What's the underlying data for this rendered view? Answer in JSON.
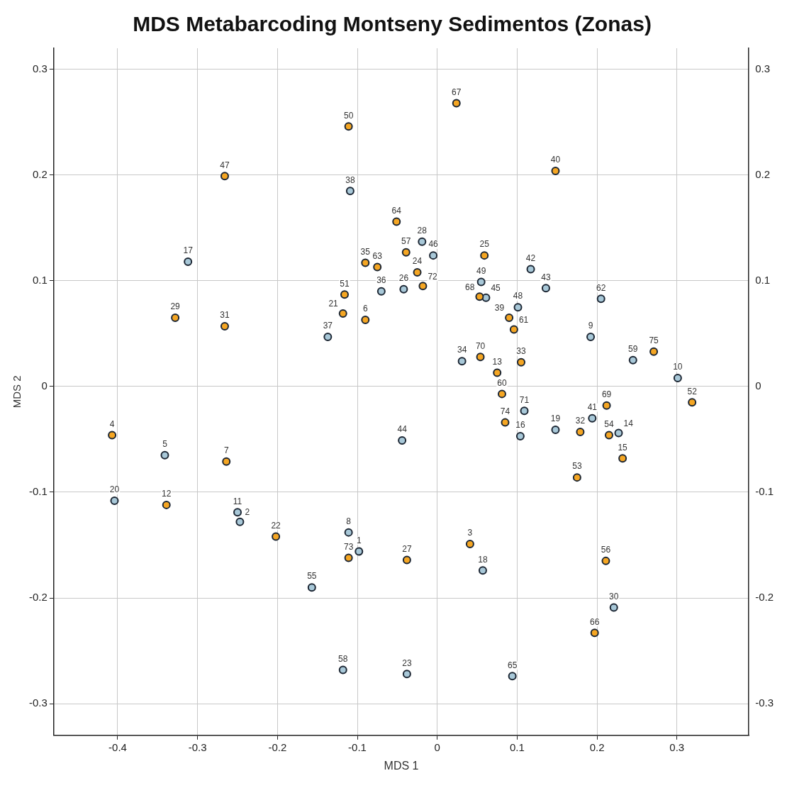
{
  "chart_data": {
    "type": "scatter",
    "title": "MDS Metabarcoding Montseny Sedimentos (Zonas)",
    "xlabel": "MDS 1",
    "ylabel": "MDS 2",
    "xlim": [
      -0.48,
      0.39
    ],
    "xticks": [
      -0.4,
      -0.3,
      -0.2,
      -0.1,
      0,
      0.1,
      0.2,
      0.3
    ],
    "ylim": [
      -0.33,
      0.32
    ],
    "yticks": [
      -0.3,
      -0.2,
      -0.1,
      0,
      0.1,
      0.2,
      0.3
    ],
    "y2lim": [
      -0.33,
      0.32
    ],
    "y2ticks": [
      -0.3,
      -0.2,
      -0.1,
      0,
      0.1,
      0.2,
      0.3
    ],
    "grid": true,
    "legend": false,
    "marker": "circle",
    "series": [
      {
        "color": "#f5a623",
        "x": [
          -0.407,
          -0.339,
          -0.264,
          -0.328,
          -0.266,
          -0.266,
          -0.202,
          -0.111,
          -0.116,
          -0.118,
          -0.09,
          -0.09,
          -0.075,
          -0.051,
          -0.039,
          -0.025,
          -0.018,
          0.024,
          0.148,
          0.059,
          0.053,
          0.09,
          0.096,
          0.054,
          0.075,
          0.105,
          0.081,
          0.085,
          0.271,
          0.319,
          0.212,
          0.179,
          0.215,
          0.232,
          0.175,
          0.211,
          0.197,
          0.041,
          -0.038,
          -0.111
        ],
        "values": [
          -0.046,
          -0.112,
          -0.071,
          0.065,
          0.057,
          0.199,
          -0.142,
          0.246,
          0.087,
          0.069,
          0.063,
          0.117,
          0.113,
          0.156,
          0.127,
          0.108,
          0.095,
          0.268,
          0.204,
          0.124,
          0.085,
          0.065,
          0.054,
          0.028,
          0.013,
          0.023,
          -0.007,
          -0.034,
          0.033,
          -0.015,
          -0.018,
          -0.043,
          -0.046,
          -0.068,
          -0.086,
          -0.165,
          -0.233,
          -0.149,
          -0.164,
          -0.162
        ]
      },
      {
        "color": "#a8c8d8",
        "x": [
          -0.404,
          -0.341,
          -0.312,
          -0.25,
          -0.247,
          -0.109,
          -0.137,
          -0.07,
          -0.042,
          -0.019,
          -0.005,
          0.055,
          0.061,
          0.101,
          0.117,
          0.136,
          0.205,
          0.192,
          0.245,
          0.301,
          0.031,
          0.109,
          0.104,
          0.148,
          0.194,
          0.227,
          -0.044,
          -0.111,
          -0.098,
          0.057,
          -0.157,
          0.221,
          -0.118,
          -0.038,
          0.094
        ],
        "values": [
          -0.108,
          -0.065,
          0.118,
          -0.119,
          -0.128,
          0.185,
          0.047,
          0.09,
          0.092,
          0.137,
          0.124,
          0.099,
          0.084,
          0.075,
          0.111,
          0.093,
          0.083,
          0.047,
          0.025,
          0.008,
          0.024,
          -0.023,
          -0.047,
          -0.041,
          -0.03,
          -0.044,
          -0.051,
          -0.138,
          -0.156,
          -0.174,
          -0.19,
          -0.209,
          -0.268,
          -0.272,
          -0.274
        ]
      }
    ],
    "annotations": [
      {
        "text": "4",
        "x": -0.407,
        "y": -0.046
      },
      {
        "text": "12",
        "x": -0.339,
        "y": -0.112
      },
      {
        "text": "7",
        "x": -0.264,
        "y": -0.071
      },
      {
        "text": "29",
        "x": -0.328,
        "y": 0.065
      },
      {
        "text": "31",
        "x": -0.266,
        "y": 0.057
      },
      {
        "text": "47",
        "x": -0.266,
        "y": 0.199
      },
      {
        "text": "22",
        "x": -0.202,
        "y": -0.142
      },
      {
        "text": "50",
        "x": -0.111,
        "y": 0.246
      },
      {
        "text": "51",
        "x": -0.116,
        "y": 0.087
      },
      {
        "text": "21",
        "x": -0.118,
        "y": 0.069
      },
      {
        "text": "6",
        "x": -0.09,
        "y": 0.063
      },
      {
        "text": "35",
        "x": -0.09,
        "y": 0.117
      },
      {
        "text": "63",
        "x": -0.075,
        "y": 0.113
      },
      {
        "text": "64",
        "x": -0.051,
        "y": 0.156
      },
      {
        "text": "57",
        "x": -0.039,
        "y": 0.127
      },
      {
        "text": "24",
        "x": -0.025,
        "y": 0.108
      },
      {
        "text": "72",
        "x": -0.018,
        "y": 0.095
      },
      {
        "text": "67",
        "x": 0.024,
        "y": 0.268
      },
      {
        "text": "40",
        "x": 0.148,
        "y": 0.204
      },
      {
        "text": "25",
        "x": 0.059,
        "y": 0.124
      },
      {
        "text": "68",
        "x": 0.053,
        "y": 0.085
      },
      {
        "text": "39",
        "x": 0.09,
        "y": 0.065
      },
      {
        "text": "61",
        "x": 0.096,
        "y": 0.054
      },
      {
        "text": "70",
        "x": 0.054,
        "y": 0.028
      },
      {
        "text": "13",
        "x": 0.075,
        "y": 0.013
      },
      {
        "text": "33",
        "x": 0.105,
        "y": 0.023
      },
      {
        "text": "60",
        "x": 0.081,
        "y": -0.007
      },
      {
        "text": "74",
        "x": 0.085,
        "y": -0.034
      },
      {
        "text": "75",
        "x": 0.271,
        "y": 0.033
      },
      {
        "text": "52",
        "x": 0.319,
        "y": -0.015
      },
      {
        "text": "69",
        "x": 0.212,
        "y": -0.018
      },
      {
        "text": "32",
        "x": 0.179,
        "y": -0.043
      },
      {
        "text": "54",
        "x": 0.215,
        "y": -0.046
      },
      {
        "text": "15",
        "x": 0.232,
        "y": -0.068
      },
      {
        "text": "53",
        "x": 0.175,
        "y": -0.086
      },
      {
        "text": "56",
        "x": 0.211,
        "y": -0.165
      },
      {
        "text": "66",
        "x": 0.197,
        "y": -0.233
      },
      {
        "text": "3",
        "x": 0.041,
        "y": -0.149
      },
      {
        "text": "27",
        "x": -0.038,
        "y": -0.164
      },
      {
        "text": "73",
        "x": -0.111,
        "y": -0.162
      },
      {
        "text": "20",
        "x": -0.404,
        "y": -0.108
      },
      {
        "text": "5",
        "x": -0.341,
        "y": -0.065
      },
      {
        "text": "17",
        "x": -0.312,
        "y": 0.118
      },
      {
        "text": "11",
        "x": -0.25,
        "y": -0.119
      },
      {
        "text": "2",
        "x": -0.247,
        "y": -0.128
      },
      {
        "text": "38",
        "x": -0.109,
        "y": 0.185
      },
      {
        "text": "37",
        "x": -0.137,
        "y": 0.047
      },
      {
        "text": "36",
        "x": -0.07,
        "y": 0.09
      },
      {
        "text": "26",
        "x": -0.042,
        "y": 0.092
      },
      {
        "text": "28",
        "x": -0.019,
        "y": 0.137
      },
      {
        "text": "46",
        "x": -0.005,
        "y": 0.124
      },
      {
        "text": "49",
        "x": 0.055,
        "y": 0.099
      },
      {
        "text": "45",
        "x": 0.061,
        "y": 0.084
      },
      {
        "text": "48",
        "x": 0.101,
        "y": 0.075
      },
      {
        "text": "42",
        "x": 0.117,
        "y": 0.111
      },
      {
        "text": "43",
        "x": 0.136,
        "y": 0.093
      },
      {
        "text": "62",
        "x": 0.205,
        "y": 0.083
      },
      {
        "text": "9",
        "x": 0.192,
        "y": 0.047
      },
      {
        "text": "59",
        "x": 0.245,
        "y": 0.025
      },
      {
        "text": "10",
        "x": 0.301,
        "y": 0.008
      },
      {
        "text": "34",
        "x": 0.031,
        "y": 0.024
      },
      {
        "text": "71",
        "x": 0.109,
        "y": -0.023
      },
      {
        "text": "16",
        "x": 0.104,
        "y": -0.047
      },
      {
        "text": "19",
        "x": 0.148,
        "y": -0.041
      },
      {
        "text": "41",
        "x": 0.194,
        "y": -0.03
      },
      {
        "text": "14",
        "x": 0.227,
        "y": -0.044
      },
      {
        "text": "44",
        "x": -0.044,
        "y": -0.051
      },
      {
        "text": "8",
        "x": -0.111,
        "y": -0.138
      },
      {
        "text": "1",
        "x": -0.098,
        "y": -0.156
      },
      {
        "text": "18",
        "x": 0.057,
        "y": -0.174
      },
      {
        "text": "55",
        "x": -0.157,
        "y": -0.19
      },
      {
        "text": "30",
        "x": 0.221,
        "y": -0.209
      },
      {
        "text": "58",
        "x": -0.118,
        "y": -0.268
      },
      {
        "text": "23",
        "x": -0.038,
        "y": -0.272
      },
      {
        "text": "65",
        "x": 0.094,
        "y": -0.274
      }
    ]
  }
}
